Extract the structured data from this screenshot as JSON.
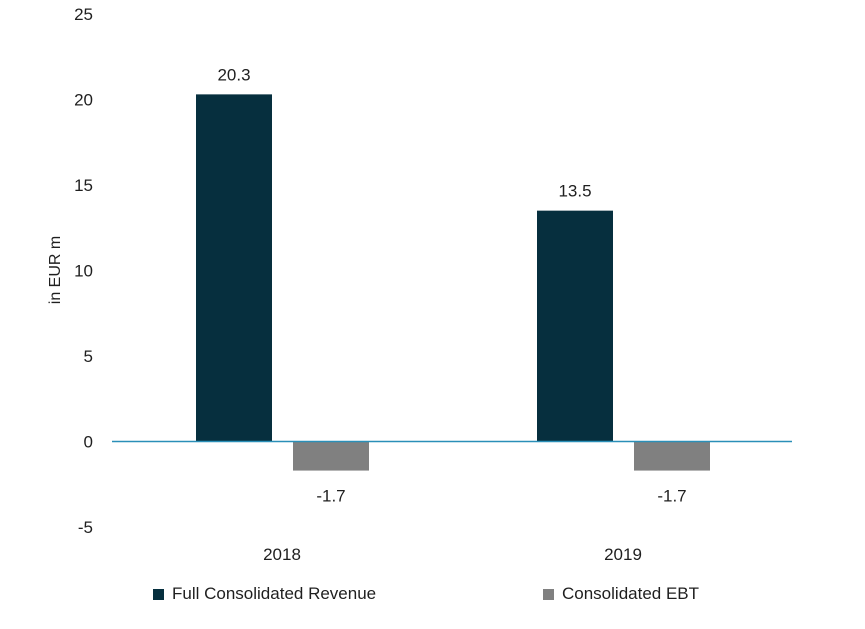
{
  "chart_data": {
    "type": "bar",
    "categories": [
      "2018",
      "2019"
    ],
    "series": [
      {
        "name": "Full Consolidated Revenue",
        "values": [
          20.3,
          13.5
        ],
        "color": "#062f3e",
        "labels": [
          "20.3",
          "13.5"
        ]
      },
      {
        "name": "Consolidated EBT",
        "values": [
          -1.7,
          -1.7
        ],
        "color": "#808080",
        "labels": [
          "-1.7",
          "-1.7"
        ]
      }
    ],
    "ylabel": "in EUR m",
    "ylim": [
      -5,
      25
    ],
    "yticks": [
      "-5",
      "0",
      "5",
      "10",
      "15",
      "20",
      "25"
    ],
    "zero_line_color": "#2a8fb8",
    "grid": false,
    "legend_position": "bottom"
  }
}
